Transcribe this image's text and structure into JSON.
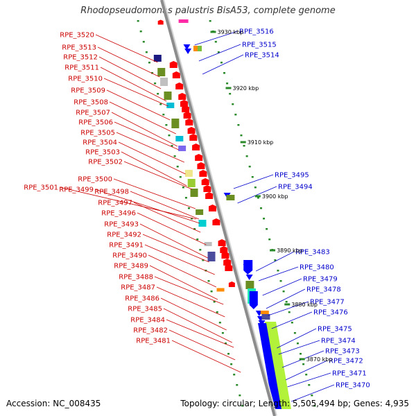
{
  "title": "Rhodopseudomonas palustris BisA53, complete genome",
  "footer": {
    "accession": "Accession: NC_008435",
    "summary": "Topology: circular; Length: 5,505,494 bp; Genes: 4,935"
  },
  "colors": {
    "left_label": "#cc0000",
    "right_label": "#0000cc",
    "backbone": "#8c8c8c",
    "forward_gene": "#ff0000",
    "reverse_gene": "#0000ff"
  },
  "ticks": [
    {
      "label": "3930 kbp"
    },
    {
      "label": "3920 kbp"
    },
    {
      "label": "3910 kbp"
    },
    {
      "label": "3900 kbp"
    },
    {
      "label": "3890 kbp"
    },
    {
      "label": "3880 kbp"
    },
    {
      "label": "3870 kbp"
    }
  ],
  "left_labels": [
    "RPE_3520",
    "RPE_3513",
    "RPE_3512",
    "RPE_3511",
    "RPE_3510",
    "RPE_3509",
    "RPE_3508",
    "RPE_3507",
    "RPE_3506",
    "RPE_3505",
    "RPE_3504",
    "RPE_3503",
    "RPE_3502",
    "RPE_3500",
    "RPE_3501",
    "RPE_3499",
    "RPE_3498",
    "RPE_3497",
    "RPE_3496",
    "RPE_3493",
    "RPE_3492",
    "RPE_3491",
    "RPE_3490",
    "RPE_3489",
    "RPE_3488",
    "RPE_3487",
    "RPE_3486",
    "RPE_3485",
    "RPE_3484",
    "RPE_3482",
    "RPE_3481"
  ],
  "right_labels": [
    "RPE_3516",
    "RPE_3515",
    "RPE_3514",
    "RPE_3495",
    "RPE_3494",
    "RPE_3483",
    "RPE_3480",
    "RPE_3479",
    "RPE_3478",
    "RPE_3477",
    "RPE_3476",
    "RPE_3475",
    "RPE_3474",
    "RPE_3473",
    "RPE_3472",
    "RPE_3471",
    "RPE_3470"
  ]
}
